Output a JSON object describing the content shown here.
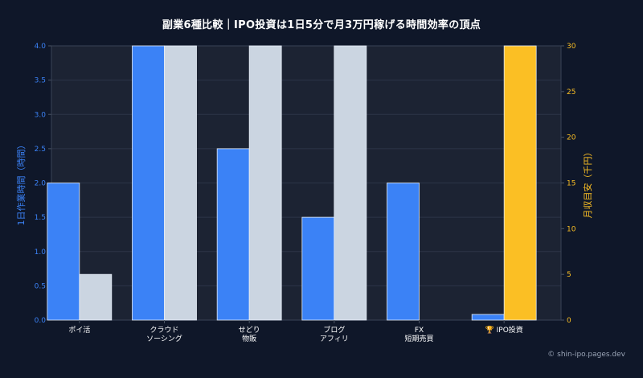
{
  "chart_data": {
    "type": "bar",
    "title": "副業6種比較｜IPO投資は1日5分で月3万円稼げる時間効率の頂点",
    "categories": [
      [
        "ポイ活"
      ],
      [
        "クラウド",
        "ソーシング"
      ],
      [
        "せどり",
        "物販"
      ],
      [
        "ブログ",
        "アフィリ"
      ],
      [
        "FX",
        "短期売買"
      ],
      [
        "🏆 IPO投資"
      ]
    ],
    "y_left": {
      "label": "1日作業時間（時間）",
      "range": [
        0,
        4.0
      ],
      "ticks": [
        "0.0",
        "0.5",
        "1.0",
        "1.5",
        "2.0",
        "2.5",
        "3.0",
        "3.5",
        "4.0"
      ],
      "color": "#3b82f6"
    },
    "y_right": {
      "label": "月収目安（千円）",
      "range": [
        0,
        30
      ],
      "ticks": [
        "0",
        "5",
        "10",
        "15",
        "20",
        "25",
        "30"
      ],
      "color": "#fbbf24"
    },
    "series": [
      {
        "name": "1日作業時間",
        "axis": "left",
        "color": "#3b82f6",
        "values": [
          2.0,
          4.0,
          2.5,
          1.5,
          2.0,
          0.083
        ]
      },
      {
        "name": "月収目安",
        "axis": "right",
        "color": "#cbd5e1",
        "highlight_color": "#fbbf24",
        "highlight_index": 5,
        "values": [
          5,
          30,
          30,
          30,
          0,
          30
        ]
      }
    ],
    "grid": true,
    "legend": "none"
  },
  "watermark": "© shin-ipo.pages.dev",
  "colors": {
    "background": "#0f1729",
    "plot_background": "#1c2333",
    "left_axis": "#3b82f6",
    "right_axis": "#fbbf24",
    "text": "#ffffff"
  }
}
